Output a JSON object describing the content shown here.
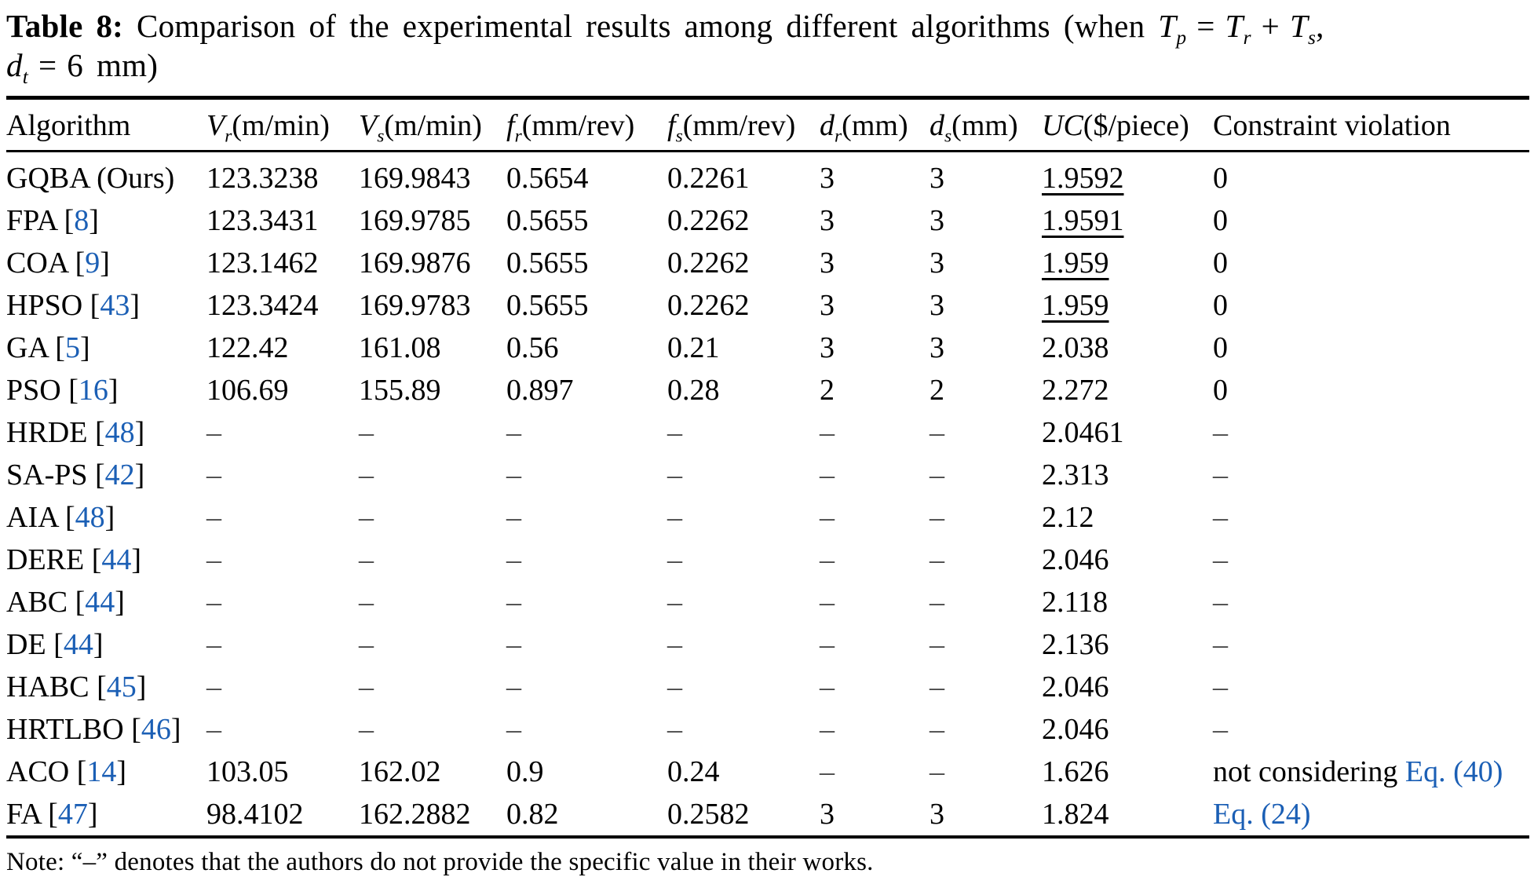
{
  "colors": {
    "link_blue": "#1b5fb5",
    "text": "#000000",
    "dash_gray": "#4a4a4a",
    "background": "#ffffff"
  },
  "caption_segments": [
    {
      "t": "Table 8:",
      "s": "b"
    },
    {
      "t": " Comparison of the experimental results among different algorithms (when ",
      "s": ""
    },
    {
      "t": "T",
      "s": "i"
    },
    {
      "t": "p",
      "s": "sub"
    },
    {
      "t": "=",
      "s": "sp"
    },
    {
      "t": "T",
      "s": "i"
    },
    {
      "t": "r",
      "s": "sub"
    },
    {
      "t": "+",
      "s": "sp"
    },
    {
      "t": "T",
      "s": "i"
    },
    {
      "t": "s",
      "s": "sub"
    },
    {
      "t": ",",
      "s": ""
    },
    {
      "s": "br"
    },
    {
      "t": "d",
      "s": "i"
    },
    {
      "t": "t",
      "s": "sub"
    },
    {
      "t": "=",
      "s": "sp"
    },
    {
      "t": "6 mm)",
      "s": ""
    }
  ],
  "table": {
    "columns": [
      {
        "label": "Algorithm"
      },
      {
        "sym": "V",
        "sub": "r",
        "unit": "(m/min)"
      },
      {
        "sym": "V",
        "sub": "s",
        "unit": "(m/min)"
      },
      {
        "sym": "f",
        "sub": "r",
        "unit": "(mm/rev)"
      },
      {
        "sym": "f",
        "sub": "s",
        "unit": "(mm/rev)"
      },
      {
        "sym": "d",
        "sub": "r",
        "unit": "(mm)"
      },
      {
        "sym": "d",
        "sub": "s",
        "unit": "(mm)"
      },
      {
        "sym": "UC",
        "sub": "",
        "unit": "($/piece)"
      },
      {
        "label": "Constraint violation"
      }
    ],
    "rows": [
      {
        "name": "GQBA (Ours)",
        "ref": "",
        "vals": [
          "123.3238",
          "169.9843",
          "0.5654",
          "0.2261",
          "3",
          "3"
        ],
        "uc": "1.9592",
        "uc_underline": true,
        "cv": "0"
      },
      {
        "name": "FPA",
        "ref": "8",
        "vals": [
          "123.3431",
          "169.9785",
          "0.5655",
          "0.2262",
          "3",
          "3"
        ],
        "uc": "1.9591",
        "uc_underline": true,
        "cv": "0"
      },
      {
        "name": "COA",
        "ref": "9",
        "vals": [
          "123.1462",
          "169.9876",
          "0.5655",
          "0.2262",
          "3",
          "3"
        ],
        "uc": "1.959",
        "uc_underline": true,
        "cv": "0"
      },
      {
        "name": "HPSO",
        "ref": "43",
        "vals": [
          "123.3424",
          "169.9783",
          "0.5655",
          "0.2262",
          "3",
          "3"
        ],
        "uc": "1.959",
        "uc_underline": true,
        "cv": "0"
      },
      {
        "name": "GA",
        "ref": "5",
        "vals": [
          "122.42",
          "161.08",
          "0.56",
          "0.21",
          "3",
          "3"
        ],
        "uc": "2.038",
        "uc_underline": false,
        "cv": "0"
      },
      {
        "name": "PSO",
        "ref": "16",
        "vals": [
          "106.69",
          "155.89",
          "0.897",
          "0.28",
          "2",
          "2"
        ],
        "uc": "2.272",
        "uc_underline": false,
        "cv": "0"
      },
      {
        "name": "HRDE",
        "ref": "48",
        "vals": [
          "–",
          "–",
          "–",
          "–",
          "–",
          "–"
        ],
        "uc": "2.0461",
        "uc_underline": false,
        "cv": "–"
      },
      {
        "name": "SA-PS",
        "ref": "42",
        "vals": [
          "–",
          "–",
          "–",
          "–",
          "–",
          "–"
        ],
        "uc": "2.313",
        "uc_underline": false,
        "cv": "–"
      },
      {
        "name": "AIA",
        "ref": "48",
        "vals": [
          "–",
          "–",
          "–",
          "–",
          "–",
          "–"
        ],
        "uc": "2.12",
        "uc_underline": false,
        "cv": "–"
      },
      {
        "name": "DERE",
        "ref": "44",
        "vals": [
          "–",
          "–",
          "–",
          "–",
          "–",
          "–"
        ],
        "uc": "2.046",
        "uc_underline": false,
        "cv": "–"
      },
      {
        "name": "ABC",
        "ref": "44",
        "vals": [
          "–",
          "–",
          "–",
          "–",
          "–",
          "–"
        ],
        "uc": "2.118",
        "uc_underline": false,
        "cv": "–"
      },
      {
        "name": "DE",
        "ref": "44",
        "vals": [
          "–",
          "–",
          "–",
          "–",
          "–",
          "–"
        ],
        "uc": "2.136",
        "uc_underline": false,
        "cv": "–"
      },
      {
        "name": "HABC",
        "ref": "45",
        "vals": [
          "–",
          "–",
          "–",
          "–",
          "–",
          "–"
        ],
        "uc": "2.046",
        "uc_underline": false,
        "cv": "–"
      },
      {
        "name": "HRTLBO",
        "ref": "46",
        "vals": [
          "–",
          "–",
          "–",
          "–",
          "–",
          "–"
        ],
        "uc": "2.046",
        "uc_underline": false,
        "cv": "–"
      },
      {
        "name": "ACO",
        "ref": "14",
        "vals": [
          "103.05",
          "162.02",
          "0.9",
          "0.24",
          "–",
          "–"
        ],
        "uc": "1.626",
        "uc_underline": false,
        "cv_text": "not considering ",
        "cv_link": "Eq. (40)"
      },
      {
        "name": "FA",
        "ref": "47",
        "vals": [
          "98.4102",
          "162.2882",
          "0.82",
          "0.2582",
          "3",
          "3"
        ],
        "uc": "1.824",
        "uc_underline": false,
        "cv_link": "Eq. (24)"
      }
    ]
  },
  "note": "Note: “–” denotes that the authors do not provide the specific value in their works."
}
